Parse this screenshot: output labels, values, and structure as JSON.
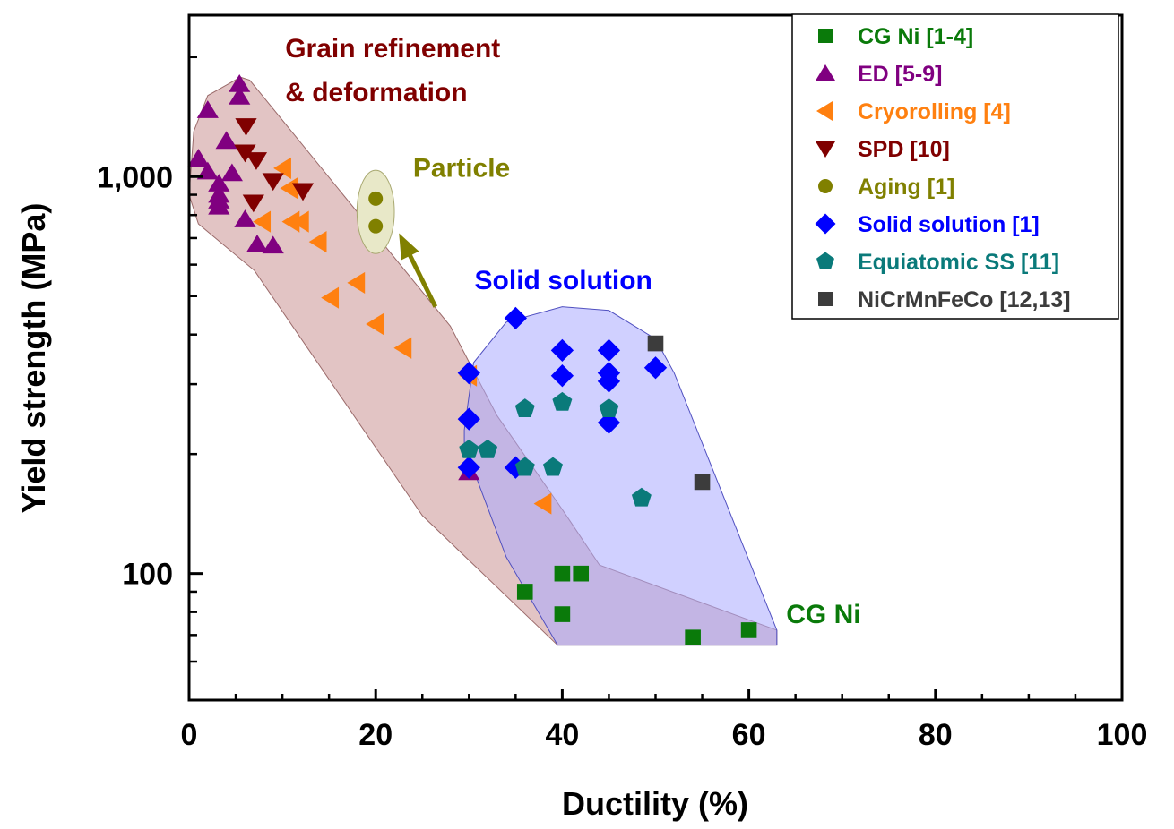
{
  "chart_data": {
    "type": "scatter",
    "title": "",
    "xlabel": "Ductility (%)",
    "ylabel": "Yield strength (MPa)",
    "xlim": [
      0,
      100
    ],
    "ylim": [
      48,
      2550
    ],
    "xscale": "linear",
    "yscale": "log",
    "grid": false,
    "x_ticks": [
      {
        "value": 0,
        "label": "0"
      },
      {
        "value": 20,
        "label": "20"
      },
      {
        "value": 40,
        "label": "40"
      },
      {
        "value": 60,
        "label": "60"
      },
      {
        "value": 80,
        "label": "80"
      },
      {
        "value": 100,
        "label": "100"
      }
    ],
    "x_minor_step": 5,
    "y_ticks": [
      {
        "value": 100,
        "label": "100"
      },
      {
        "value": 1000,
        "label": "1,000"
      }
    ],
    "y_minor_ticks": [
      60,
      70,
      80,
      90,
      200,
      300,
      400,
      500,
      600,
      700,
      800,
      900,
      2000
    ],
    "legend_position": "top-right",
    "series": [
      {
        "name": "CG Ni [1-4]",
        "marker": "square",
        "color": "#0a7a0a",
        "points": [
          [
            40,
            100
          ],
          [
            42,
            100
          ],
          [
            36,
            90
          ],
          [
            40,
            79
          ],
          [
            54,
            69
          ],
          [
            60,
            72
          ]
        ]
      },
      {
        "name": "ED [5-9]",
        "marker": "triangle-up",
        "color": "#800080",
        "points": [
          [
            5.4,
            1710
          ],
          [
            5.4,
            1590
          ],
          [
            2,
            1470
          ],
          [
            4,
            1230
          ],
          [
            1,
            1110
          ],
          [
            2,
            1030
          ],
          [
            4.6,
            1020
          ],
          [
            3.2,
            960
          ],
          [
            3.2,
            900
          ],
          [
            3.2,
            870
          ],
          [
            3.2,
            840
          ],
          [
            6,
            780
          ],
          [
            7.3,
            675
          ],
          [
            9,
            670
          ],
          [
            30,
            180
          ]
        ]
      },
      {
        "name": "Cryorolling [4]",
        "marker": "triangle-left",
        "color": "#ff8010",
        "points": [
          [
            10.1,
            1050
          ],
          [
            10.8,
            935
          ],
          [
            7.9,
            770
          ],
          [
            11,
            770
          ],
          [
            12,
            770
          ],
          [
            13.9,
            685
          ],
          [
            18,
            540
          ],
          [
            15.2,
            495
          ],
          [
            20,
            425
          ],
          [
            23,
            370
          ],
          [
            30,
            315
          ],
          [
            38,
            150
          ]
        ]
      },
      {
        "name": "SPD [10]",
        "marker": "triangle-down",
        "color": "#800000",
        "points": [
          [
            6.1,
            1340
          ],
          [
            6,
            1150
          ],
          [
            7.2,
            1100
          ],
          [
            9,
            975
          ],
          [
            12.2,
            920
          ],
          [
            6.9,
            860
          ]
        ]
      },
      {
        "name": "Aging [1]",
        "marker": "circle",
        "color": "#808000",
        "points": [
          [
            20,
            880
          ],
          [
            20,
            750
          ]
        ]
      },
      {
        "name": "Solid solution [1]",
        "marker": "diamond",
        "color": "#0000ff",
        "points": [
          [
            35,
            440
          ],
          [
            40,
            365
          ],
          [
            45,
            365
          ],
          [
            30,
            320
          ],
          [
            40,
            315
          ],
          [
            45,
            320
          ],
          [
            45,
            305
          ],
          [
            50,
            330
          ],
          [
            30,
            245
          ],
          [
            45,
            240
          ],
          [
            30,
            185
          ],
          [
            35,
            185
          ]
        ]
      },
      {
        "name": "Equiatomic SS [11]",
        "marker": "pentagon",
        "color": "#0a7a7a",
        "points": [
          [
            36,
            260
          ],
          [
            40,
            270
          ],
          [
            45,
            260
          ],
          [
            30,
            205
          ],
          [
            32,
            205
          ],
          [
            36,
            185
          ],
          [
            39,
            185
          ],
          [
            48.5,
            155
          ]
        ]
      },
      {
        "name": "NiCrMnFeCo [12,13]",
        "marker": "square",
        "color": "#3c3c3c",
        "points": [
          [
            50,
            380
          ],
          [
            55,
            170
          ]
        ]
      }
    ],
    "regions": [
      {
        "name": "grain-refinement-region",
        "fill": "#e2c4c4",
        "stroke": "#9a6a6a",
        "polygon": [
          [
            0.5,
            1300
          ],
          [
            2,
            1600
          ],
          [
            5.5,
            1780
          ],
          [
            6.5,
            1750
          ],
          [
            28,
            420
          ],
          [
            33,
            250
          ],
          [
            40,
            145
          ],
          [
            44,
            105
          ],
          [
            63,
            72
          ],
          [
            63,
            66
          ],
          [
            39.5,
            66
          ],
          [
            25,
            140
          ],
          [
            7,
            580
          ],
          [
            1,
            760
          ],
          [
            0,
            900
          ]
        ]
      },
      {
        "name": "solid-solution-region",
        "fill": "#aaaaff",
        "fill_opacity": 0.55,
        "stroke": "#5050c0",
        "polygon": [
          [
            29.5,
            230
          ],
          [
            30.5,
            340
          ],
          [
            34,
            430
          ],
          [
            40,
            470
          ],
          [
            45,
            460
          ],
          [
            50,
            390
          ],
          [
            52,
            320
          ],
          [
            63,
            72
          ],
          [
            63,
            66
          ],
          [
            39.5,
            66
          ],
          [
            34,
            110
          ],
          [
            29.5,
            210
          ]
        ]
      },
      {
        "name": "particle-region",
        "fill": "#e8e8c8",
        "stroke": "#a8a870",
        "ellipse_center": [
          20,
          815
        ],
        "ellipse_rx_units": 2.0,
        "ellipse_ry_decades": 0.105
      }
    ],
    "arrow": {
      "from": [
        26.4,
        470
      ],
      "to": [
        22.5,
        720
      ],
      "color": "#808000"
    },
    "annotations": [
      {
        "text": "Grain refinement",
        "x": 10.3,
        "y": 2000,
        "color": "#800000"
      },
      {
        "text": "& deformation",
        "x": 10.3,
        "y": 1550,
        "color": "#800000"
      },
      {
        "text": "Particle",
        "x": 24,
        "y": 1000,
        "color": "#808000"
      },
      {
        "text": "Solid solution",
        "x": 30.6,
        "y": 520,
        "color": "#0000ff"
      },
      {
        "text": "CG Ni",
        "x": 64,
        "y": 75,
        "color": "#0a7a0a"
      }
    ]
  }
}
